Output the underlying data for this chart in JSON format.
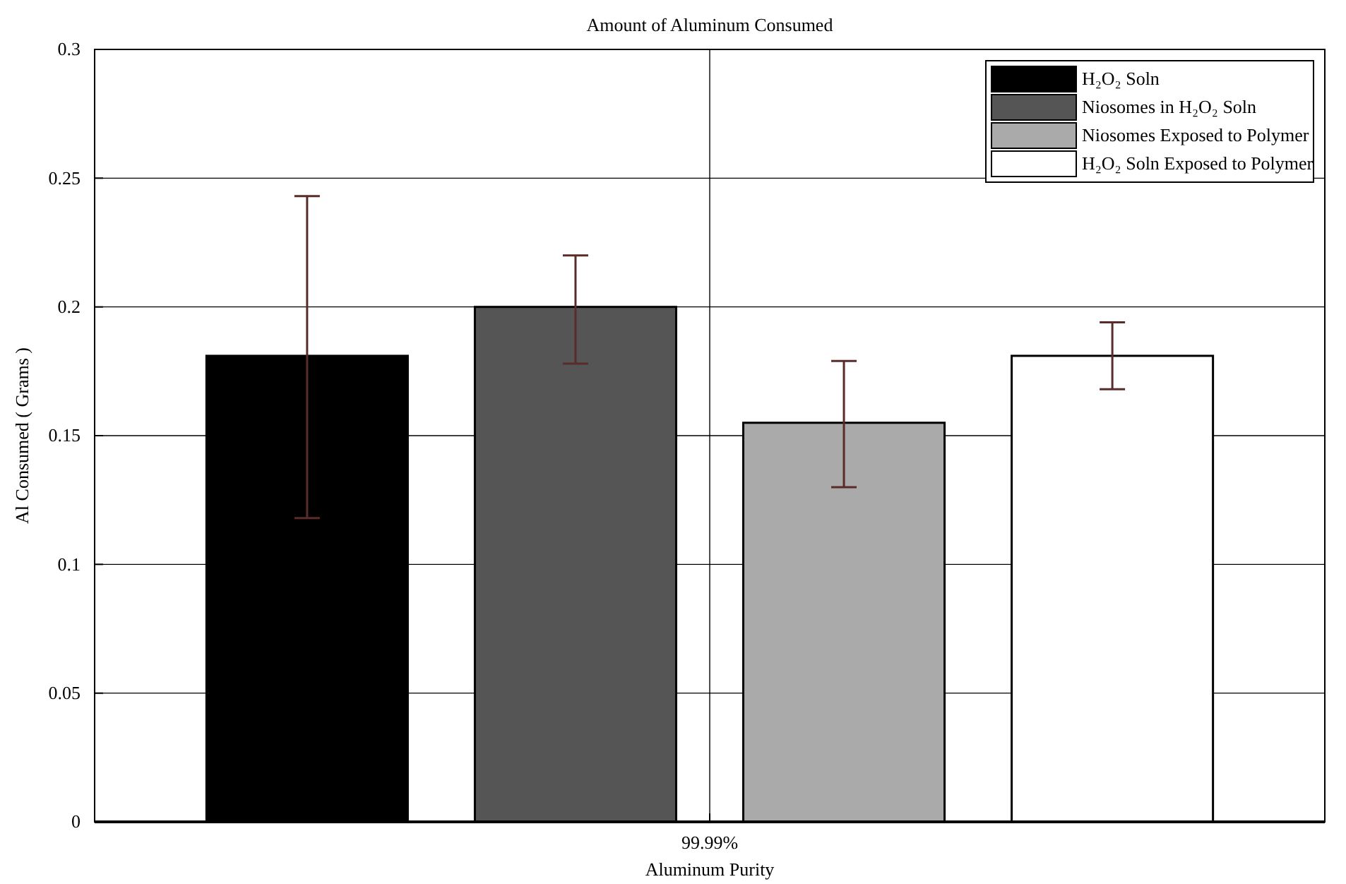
{
  "chart_data": {
    "type": "bar",
    "title": "Amount of Aluminum Consumed",
    "xlabel": "Aluminum Purity",
    "ylabel": "Al Consumed ( Grams )",
    "categories": [
      "99.99%"
    ],
    "series": [
      {
        "name": "H₂O₂ Soln",
        "color": "#000000",
        "values": [
          0.181
        ],
        "errors": [
          [
            0.118,
            0.243
          ]
        ]
      },
      {
        "name": "Niosomes in H₂O₂ Soln",
        "color": "#555555",
        "values": [
          0.2
        ],
        "errors": [
          [
            0.178,
            0.22
          ]
        ]
      },
      {
        "name": "Niosomes Exposed to Polymer",
        "color": "#aaaaaa",
        "values": [
          0.155
        ],
        "errors": [
          [
            0.13,
            0.179
          ]
        ]
      },
      {
        "name": "H₂O₂ Soln Exposed to Polymer",
        "color": "#ffffff",
        "values": [
          0.181
        ],
        "errors": [
          [
            0.168,
            0.194
          ]
        ]
      }
    ],
    "ylim": [
      0,
      0.3
    ],
    "yticks": [
      0,
      0.05,
      0.1,
      0.15,
      0.2,
      0.25,
      0.3
    ],
    "grid": true,
    "legend": "top right"
  }
}
